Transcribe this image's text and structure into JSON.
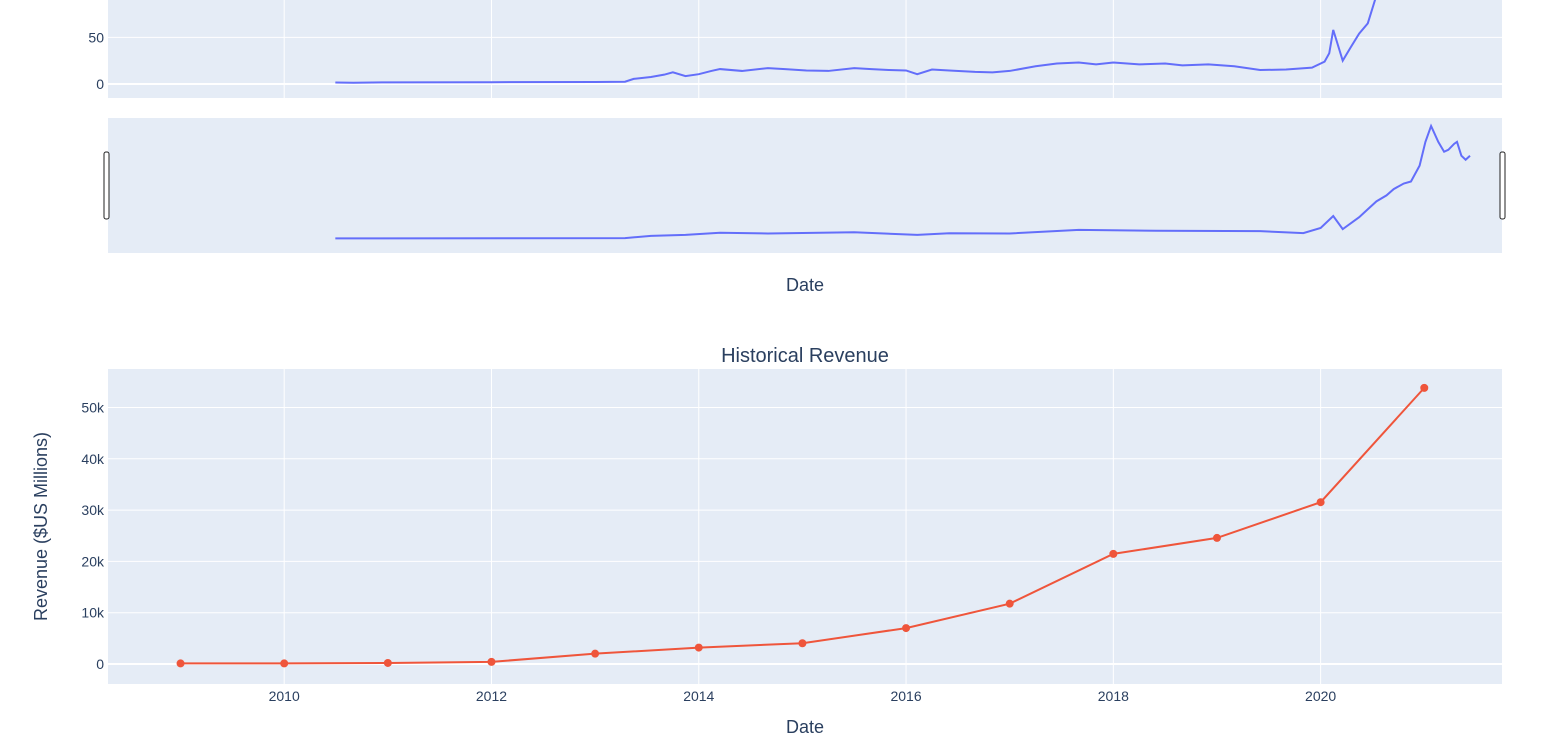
{
  "colors": {
    "plot_bg": "#e5ecf6",
    "grid": "#ffffff",
    "price_line": "#636efa",
    "revenue_line": "#ef553b",
    "text": "#2a3f5f"
  },
  "chart_data": [
    {
      "type": "line",
      "title": "",
      "xlabel": "Date",
      "ylabel": "",
      "y_tick_labels": [
        "0",
        "50"
      ],
      "ylim": [
        -15,
        90
      ],
      "range_slider": true,
      "grid": true,
      "series": [
        {
          "x": [
            "2010-06-29",
            "2010-09-01",
            "2011-01-01",
            "2012-01-01",
            "2013-01-01",
            "2013-04-15",
            "2013-05-15",
            "2013-07-15",
            "2013-09-01",
            "2013-10-01",
            "2013-11-15",
            "2014-01-01",
            "2014-02-15",
            "2014-03-15",
            "2014-06-01",
            "2014-09-01",
            "2014-11-01",
            "2015-01-15",
            "2015-04-01",
            "2015-07-01",
            "2015-09-01",
            "2015-11-01",
            "2016-01-01",
            "2016-02-10",
            "2016-04-01",
            "2016-06-01",
            "2016-09-01",
            "2016-11-01",
            "2017-01-01",
            "2017-04-01",
            "2017-06-15",
            "2017-09-01",
            "2017-11-01",
            "2018-01-01",
            "2018-04-01",
            "2018-07-01",
            "2018-09-01",
            "2018-12-01",
            "2019-03-01",
            "2019-06-01",
            "2019-09-01",
            "2019-12-01",
            "2020-01-15",
            "2020-02-01",
            "2020-02-15",
            "2020-03-18",
            "2020-04-15",
            "2020-05-15",
            "2020-06-15",
            "2020-07-10",
            "2020-08-01"
          ],
          "y": [
            1.6,
            1.4,
            1.8,
            1.9,
            2.2,
            2.4,
            5.5,
            7.5,
            10,
            12.5,
            8.5,
            10.5,
            14,
            16,
            14,
            17,
            16,
            14.5,
            14,
            17,
            16,
            15,
            14.5,
            10.5,
            15.5,
            14.5,
            13,
            12.5,
            14,
            19,
            22,
            23,
            21,
            23,
            21,
            22,
            20,
            21,
            19,
            15,
            15.5,
            17.5,
            24,
            33,
            58,
            25,
            39,
            54,
            65,
            90,
            120
          ]
        }
      ]
    },
    {
      "type": "line",
      "title": "Historical Revenue",
      "xlabel": "Date",
      "ylabel": "Revenue ($US Millions)",
      "ylim": [
        -3900,
        57500
      ],
      "y_ticks": [
        0,
        10000,
        20000,
        30000,
        40000,
        50000
      ],
      "y_tick_labels": [
        "0",
        "10k",
        "20k",
        "30k",
        "40k",
        "50k"
      ],
      "x_tick_labels": [
        "2010",
        "2012",
        "2014",
        "2016",
        "2018",
        "2020"
      ],
      "grid": true,
      "series": [
        {
          "x": [
            "2009",
            "2010",
            "2011",
            "2012",
            "2013",
            "2014",
            "2015",
            "2016",
            "2017",
            "2018",
            "2019",
            "2020",
            "2021"
          ],
          "y": [
            112,
            117,
            204,
            413,
            2013,
            3198,
            4046,
            7000,
            11759,
            21461,
            24578,
            31536,
            53823
          ]
        }
      ]
    }
  ],
  "range_slider_series": {
    "x": [
      "2010-06-29",
      "2013-04-15",
      "2013-07-15",
      "2013-11-15",
      "2014-03-15",
      "2014-09-01",
      "2015-07-01",
      "2016-02-10",
      "2016-06-01",
      "2017-01-01",
      "2017-09-01",
      "2018-06-01",
      "2019-06-01",
      "2019-11-01",
      "2020-01-01",
      "2020-02-15",
      "2020-03-18",
      "2020-05-15",
      "2020-06-15",
      "2020-07-15",
      "2020-08-20",
      "2020-09-15",
      "2020-10-20",
      "2020-11-15",
      "2020-12-15",
      "2021-01-05",
      "2021-01-25",
      "2021-02-20",
      "2021-03-10",
      "2021-03-25",
      "2021-04-15",
      "2021-04-25",
      "2021-05-10",
      "2021-05-25",
      "2021-06-10"
    ],
    "y": [
      1.6,
      2.3,
      8,
      10.5,
      16,
      14,
      17,
      10.5,
      14.5,
      14,
      23,
      21,
      20,
      15,
      28,
      58,
      25,
      55,
      75,
      95,
      110,
      126,
      140,
      145,
      185,
      245,
      285,
      245,
      220,
      225,
      240,
      245,
      210,
      200,
      210
    ]
  }
}
